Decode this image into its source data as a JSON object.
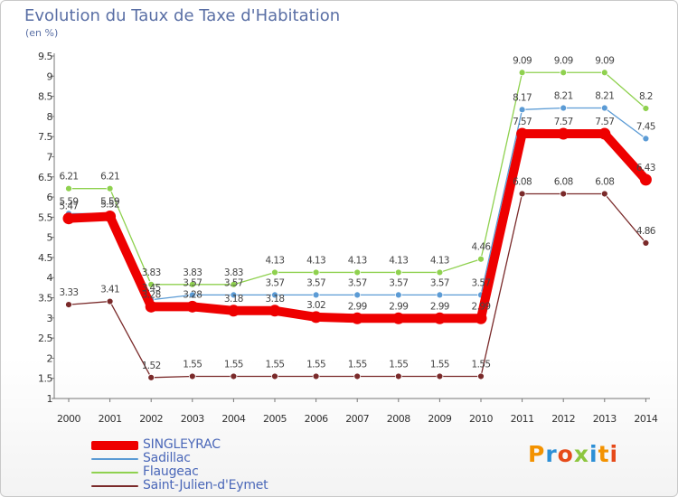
{
  "chart_data": {
    "type": "line",
    "title": "Evolution du Taux de Taxe d'Habitation",
    "subtitle": "(en %)",
    "x": [
      2000,
      2001,
      2002,
      2003,
      2004,
      2005,
      2006,
      2007,
      2008,
      2009,
      2010,
      2011,
      2012,
      2013,
      2014
    ],
    "ylim": [
      1,
      9.5
    ],
    "yticks": [
      1,
      1.5,
      2,
      2.5,
      3,
      3.5,
      4,
      4.5,
      5,
      5.5,
      6,
      6.5,
      7,
      7.5,
      8,
      8.5,
      9,
      9.5
    ],
    "grid": false,
    "legend_position": "bottom-left",
    "series": [
      {
        "name": "SINGLEYRAC",
        "color": "#ee0000",
        "values": [
          5.47,
          5.52,
          3.28,
          3.28,
          3.18,
          3.18,
          3.02,
          2.99,
          2.99,
          2.99,
          2.99,
          7.57,
          7.57,
          7.57,
          6.43
        ]
      },
      {
        "name": "Sadillac",
        "color": "#5b9bd5",
        "values": [
          5.59,
          5.59,
          3.45,
          3.57,
          3.57,
          3.57,
          3.57,
          3.57,
          3.57,
          3.57,
          3.57,
          8.17,
          8.21,
          8.21,
          7.45
        ]
      },
      {
        "name": "Flaugeac",
        "color": "#8fd14f",
        "values": [
          6.21,
          6.21,
          3.83,
          3.83,
          3.83,
          4.13,
          4.13,
          4.13,
          4.13,
          4.13,
          4.46,
          9.09,
          9.09,
          9.09,
          8.2
        ]
      },
      {
        "name": "Saint-Julien-d'Eymet",
        "color": "#7a2a2a",
        "values": [
          3.33,
          3.41,
          1.52,
          1.55,
          1.55,
          1.55,
          1.55,
          1.55,
          1.55,
          1.55,
          1.55,
          6.08,
          6.08,
          6.08,
          4.86
        ]
      }
    ]
  },
  "brand": {
    "letters": [
      "P",
      "r",
      "o",
      "x",
      "i",
      "t",
      "i"
    ],
    "colors": [
      "#f39200",
      "#2c8fd6",
      "#e64a19",
      "#8dc63f",
      "#2c8fd6",
      "#f39200",
      "#e64a19"
    ]
  }
}
